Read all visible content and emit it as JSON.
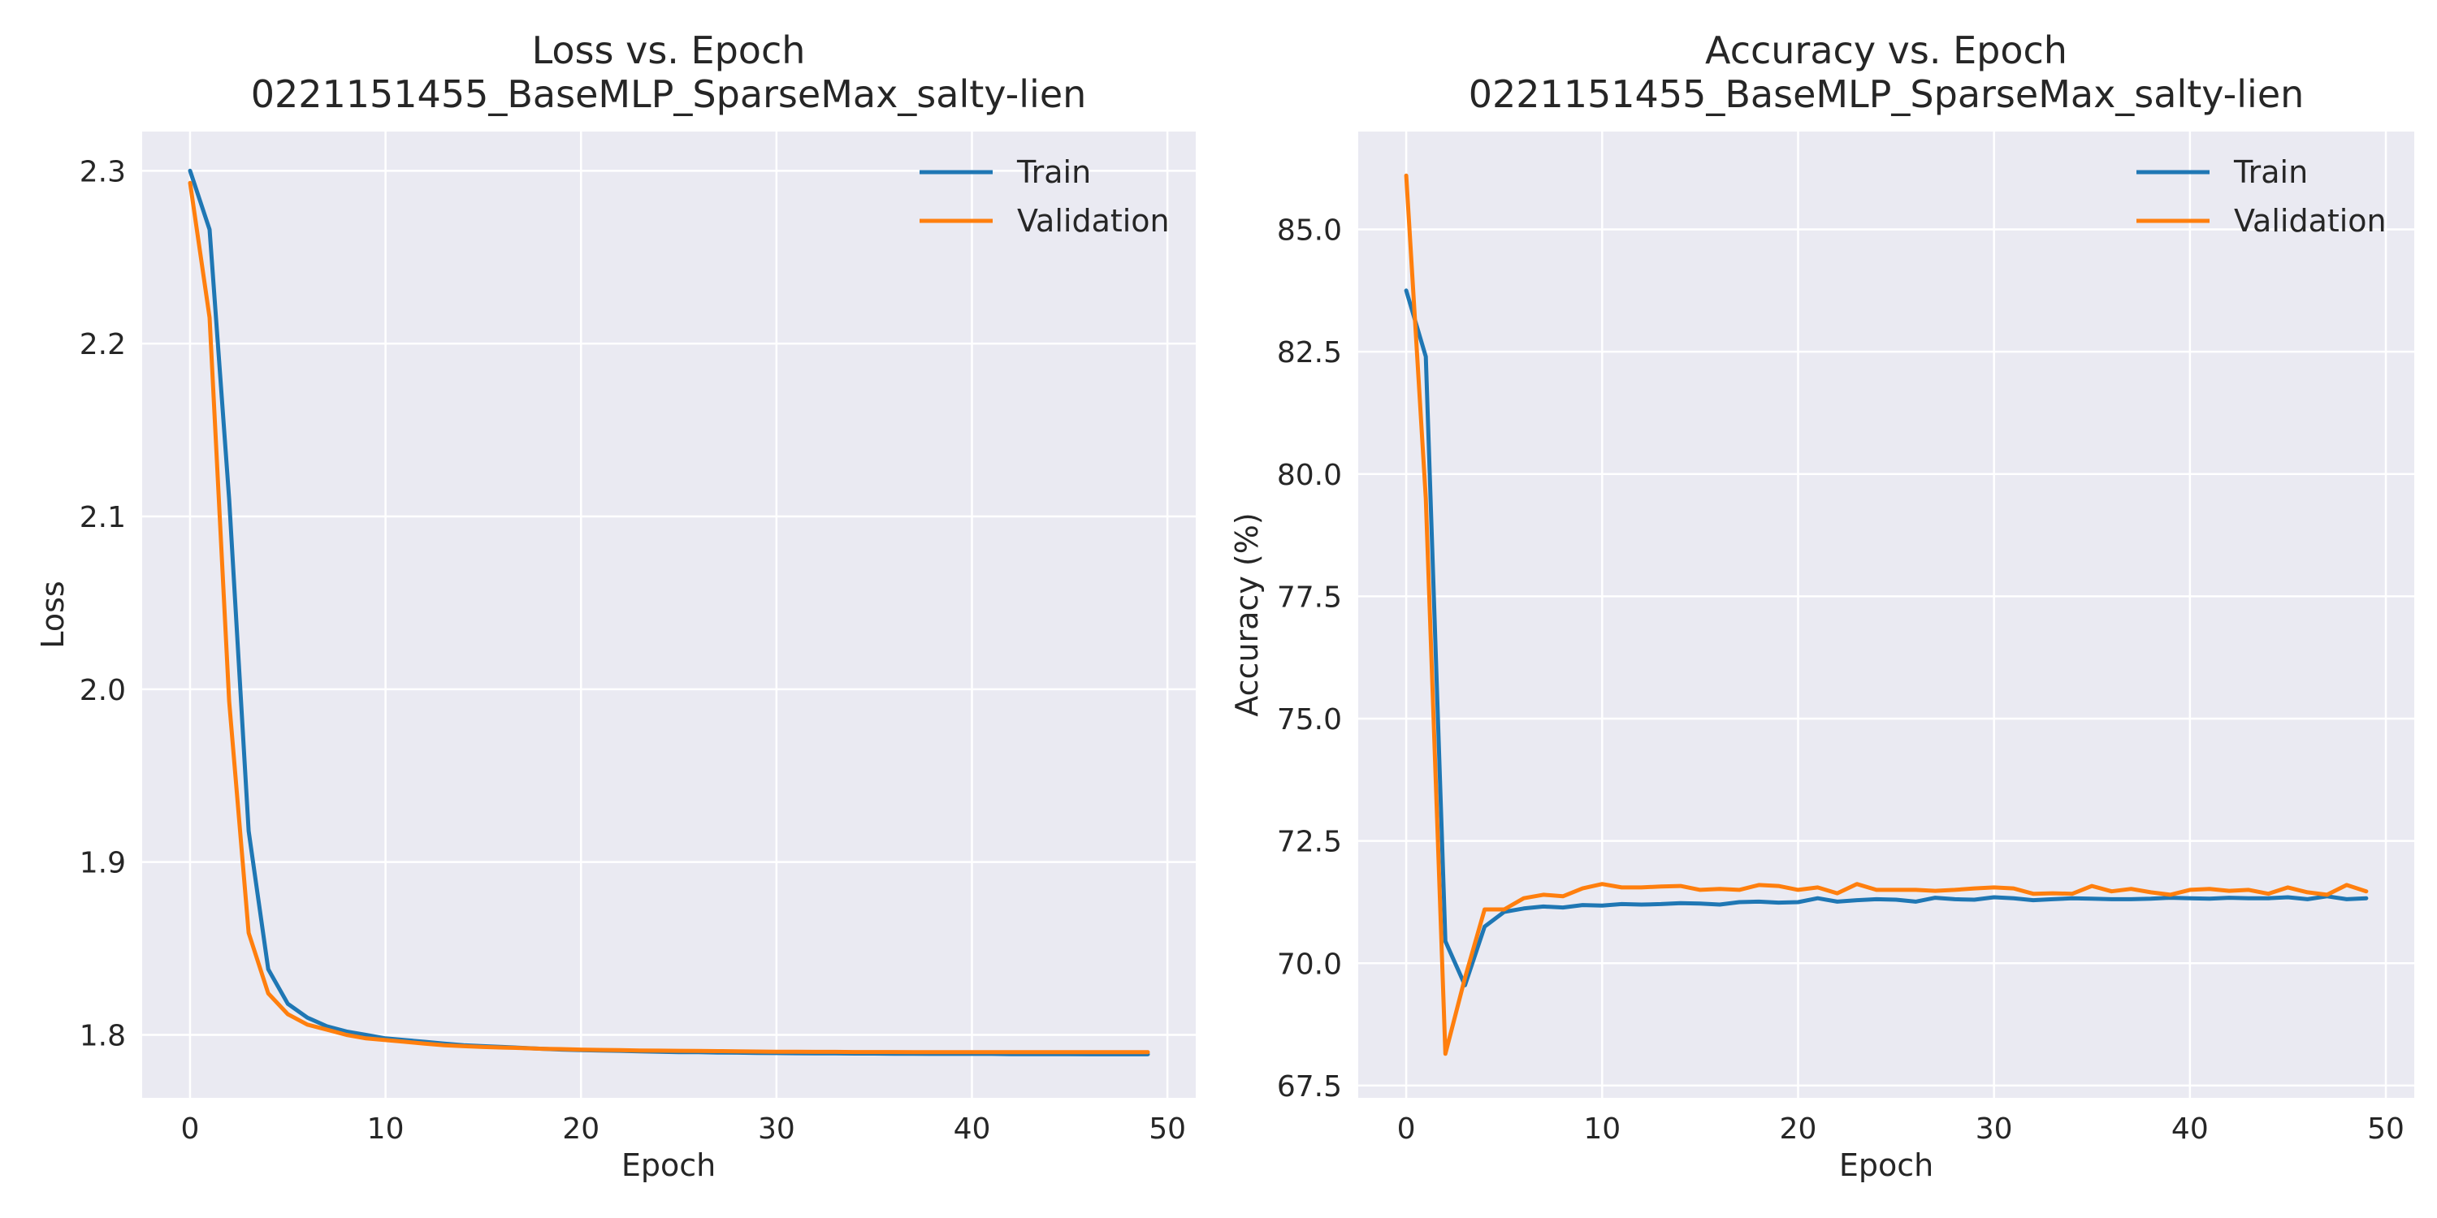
{
  "chart_data": [
    {
      "type": "line",
      "title": "Loss vs. Epoch",
      "subtitle": "0221151455_BaseMLP_SparseMax_salty-lien",
      "xlabel": "Epoch",
      "ylabel": "Loss",
      "xlim": [
        -2.45,
        51.45
      ],
      "ylim": [
        1.7636,
        2.3227
      ],
      "xticks": [
        "0",
        "10",
        "20",
        "30",
        "40",
        "50"
      ],
      "yticks": [
        "1.8",
        "1.9",
        "2.0",
        "2.1",
        "2.2",
        "2.3"
      ],
      "grid": true,
      "legend_position": "top-right",
      "x": [
        0,
        1,
        2,
        3,
        4,
        5,
        6,
        7,
        8,
        9,
        10,
        11,
        12,
        13,
        14,
        15,
        16,
        17,
        18,
        19,
        20,
        21,
        22,
        23,
        24,
        25,
        26,
        27,
        28,
        29,
        30,
        31,
        32,
        33,
        34,
        35,
        36,
        37,
        38,
        39,
        40,
        41,
        42,
        43,
        44,
        45,
        46,
        47,
        48,
        49
      ],
      "series": [
        {
          "name": "Train",
          "color": "#1f77b4",
          "values": [
            2.3,
            2.266,
            2.11,
            1.918,
            1.838,
            1.818,
            1.81,
            1.805,
            1.802,
            1.8,
            1.798,
            1.797,
            1.796,
            1.795,
            1.794,
            1.7935,
            1.793,
            1.7925,
            1.792,
            1.7915,
            1.7912,
            1.791,
            1.7908,
            1.7905,
            1.7903,
            1.79,
            1.79,
            1.7898,
            1.7897,
            1.7896,
            1.7895,
            1.7894,
            1.7893,
            1.7893,
            1.7892,
            1.7892,
            1.7891,
            1.7891,
            1.789,
            1.789,
            1.789,
            1.789,
            1.7889,
            1.7889,
            1.7889,
            1.7889,
            1.7888,
            1.7888,
            1.7888,
            1.7888
          ]
        },
        {
          "name": "Validation",
          "color": "#ff7f0e",
          "values": [
            2.293,
            2.215,
            1.993,
            1.859,
            1.824,
            1.812,
            1.806,
            1.803,
            1.8,
            1.798,
            1.797,
            1.796,
            1.795,
            1.794,
            1.7935,
            1.793,
            1.7927,
            1.7924,
            1.792,
            1.7918,
            1.7915,
            1.7913,
            1.7912,
            1.791,
            1.7909,
            1.7908,
            1.7907,
            1.7906,
            1.7905,
            1.7904,
            1.7903,
            1.7903,
            1.7902,
            1.7902,
            1.7901,
            1.7901,
            1.7901,
            1.79,
            1.79,
            1.79,
            1.79,
            1.79,
            1.79,
            1.79,
            1.79,
            1.79,
            1.79,
            1.79,
            1.79,
            1.79
          ]
        }
      ]
    },
    {
      "type": "line",
      "title": "Accuracy vs. Epoch",
      "subtitle": "0221151455_BaseMLP_SparseMax_salty-lien",
      "xlabel": "Epoch",
      "ylabel": "Accuracy (%)",
      "xlim": [
        -2.45,
        51.45
      ],
      "ylim": [
        67.25,
        87.0
      ],
      "xticks": [
        "0",
        "10",
        "20",
        "30",
        "40",
        "50"
      ],
      "yticks": [
        "67.5",
        "70.0",
        "72.5",
        "75.0",
        "77.5",
        "80.0",
        "82.5",
        "85.0"
      ],
      "grid": true,
      "legend_position": "top-right",
      "x": [
        0,
        1,
        2,
        3,
        4,
        5,
        6,
        7,
        8,
        9,
        10,
        11,
        12,
        13,
        14,
        15,
        16,
        17,
        18,
        19,
        20,
        21,
        22,
        23,
        24,
        25,
        26,
        27,
        28,
        29,
        30,
        31,
        32,
        33,
        34,
        35,
        36,
        37,
        38,
        39,
        40,
        41,
        42,
        43,
        44,
        45,
        46,
        47,
        48,
        49
      ],
      "series": [
        {
          "name": "Train",
          "color": "#1f77b4",
          "values": [
            83.75,
            82.4,
            70.45,
            69.55,
            70.75,
            71.05,
            71.12,
            71.16,
            71.14,
            71.19,
            71.18,
            71.21,
            71.2,
            71.21,
            71.23,
            71.22,
            71.2,
            71.25,
            71.26,
            71.24,
            71.25,
            71.33,
            71.26,
            71.29,
            71.31,
            71.3,
            71.26,
            71.34,
            71.31,
            71.3,
            71.35,
            71.33,
            71.29,
            71.31,
            71.33,
            71.32,
            71.31,
            71.31,
            71.32,
            71.34,
            71.33,
            71.32,
            71.34,
            71.33,
            71.33,
            71.35,
            71.31,
            71.37,
            71.31,
            71.33
          ]
        },
        {
          "name": "Validation",
          "color": "#ff7f0e",
          "values": [
            86.1,
            79.5,
            68.15,
            69.7,
            71.1,
            71.1,
            71.33,
            71.4,
            71.37,
            71.53,
            71.62,
            71.55,
            71.55,
            71.57,
            71.58,
            71.5,
            71.52,
            71.5,
            71.6,
            71.58,
            71.5,
            71.55,
            71.43,
            71.62,
            71.5,
            71.5,
            71.5,
            71.48,
            71.5,
            71.53,
            71.55,
            71.53,
            71.42,
            71.43,
            71.42,
            71.58,
            71.47,
            71.52,
            71.45,
            71.4,
            71.5,
            71.52,
            71.48,
            71.5,
            71.42,
            71.55,
            71.45,
            71.4,
            71.6,
            71.47
          ]
        }
      ]
    }
  ]
}
